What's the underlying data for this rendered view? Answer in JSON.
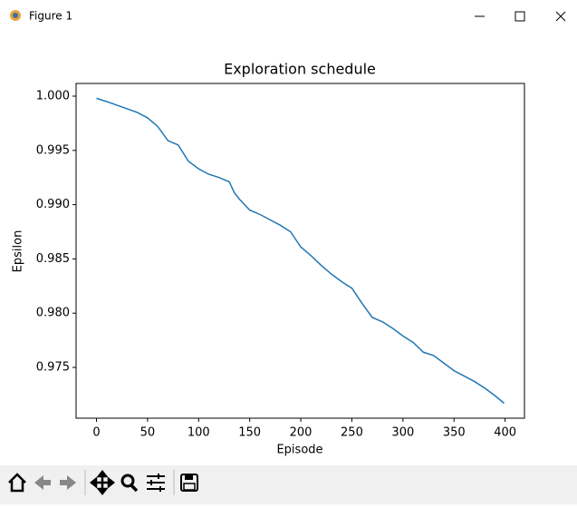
{
  "window": {
    "title": "Figure 1"
  },
  "chart_data": {
    "type": "line",
    "title": "Exploration schedule",
    "x_label": "Episode",
    "y_label": "Epsilon",
    "x": [
      0,
      10,
      25,
      40,
      50,
      60,
      70,
      80,
      90,
      100,
      110,
      120,
      130,
      135,
      140,
      150,
      160,
      170,
      180,
      190,
      200,
      210,
      220,
      230,
      240,
      250,
      260,
      270,
      280,
      290,
      300,
      310,
      320,
      330,
      340,
      350,
      360,
      370,
      380,
      390,
      399
    ],
    "values": [
      0.9998,
      0.9995,
      0.999,
      0.9985,
      0.998,
      0.9972,
      0.9959,
      0.9955,
      0.994,
      0.9933,
      0.9928,
      0.9925,
      0.9921,
      0.9911,
      0.9905,
      0.9895,
      0.9891,
      0.9886,
      0.9881,
      0.9875,
      0.9861,
      0.9853,
      0.9844,
      0.9836,
      0.9829,
      0.9823,
      0.9809,
      0.9796,
      0.9792,
      0.9786,
      0.9779,
      0.9773,
      0.9764,
      0.9761,
      0.9754,
      0.9747,
      0.9742,
      0.9737,
      0.9731,
      0.9724,
      0.9717
    ],
    "color": "#1f77b4",
    "xlim": [
      -19.95,
      418.95
    ],
    "xticks": [
      0,
      50,
      100,
      150,
      200,
      250,
      300,
      350,
      400
    ],
    "ylim": [
      0.97032,
      1.00117
    ],
    "yticks": [
      0.975,
      {
        "value": 0.98,
        "label": "0.980"
      },
      0.985,
      {
        "value": 0.99,
        "label": "0.990"
      },
      0.995,
      {
        "value": 1,
        "label": "1.000"
      }
    ],
    "grid": false
  }
}
